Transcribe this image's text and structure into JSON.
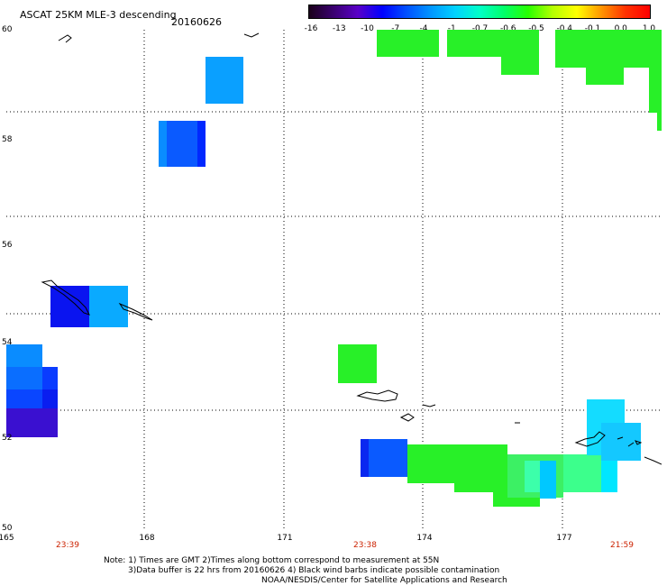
{
  "header": {
    "title": "ASCAT 25KM MLE-3 descending",
    "date": "20160626"
  },
  "colorbar": {
    "labels": [
      "-16",
      "-13",
      "-10",
      "-7",
      "-4",
      "-1",
      "-0.7",
      "-0.6",
      "-0.5",
      "-0.4",
      "-0.1",
      "0.0",
      "1.0"
    ],
    "colors": [
      "#1a001a",
      "#3a0070",
      "#5a00c8",
      "#0000ff",
      "#0050ff",
      "#0096ff",
      "#00d2ff",
      "#00ffc8",
      "#00ff6a",
      "#28ff00",
      "#b4ff00",
      "#ffff00",
      "#ff9600",
      "#ff3200",
      "#ff0000"
    ]
  },
  "axes": {
    "lat_labels": [
      "60",
      "58",
      "56",
      "54",
      "52",
      "50"
    ],
    "lon_labels": [
      "165",
      "168",
      "171",
      "174",
      "177"
    ],
    "time_labels": [
      "23:39",
      "23:38",
      "21:59"
    ]
  },
  "notes": {
    "line1": "Note: 1) Times are GMT 2)Times along bottom correspond to measurement at 55N",
    "line2": "3)Data buffer is 22 hrs from 20160626 4) Black wind barbs indicate possible contamination",
    "line3": "NOAA/NESDIS/Center for Satellite Applications and Research"
  }
}
